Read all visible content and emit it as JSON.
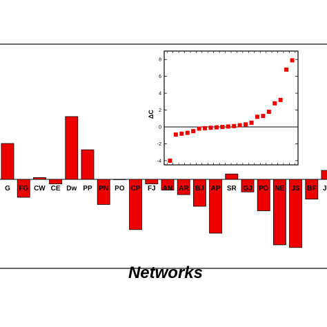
{
  "chart_data": [
    {
      "type": "bar",
      "xlabel": "Networks",
      "ylim": [
        -7,
        8
      ],
      "color": "#ee0000",
      "categories": [
        "G",
        "FG",
        "CW",
        "CE",
        "Dw",
        "PP",
        "PN",
        "PO",
        "CP",
        "FJ",
        "AN",
        "AR",
        "BJ",
        "AP",
        "SR",
        "GJ",
        "PD",
        "NE",
        "JS",
        "BF",
        "JM"
      ],
      "values": [
        4.0,
        -2.0,
        0.2,
        -0.5,
        7.0,
        3.3,
        -2.8,
        0.0,
        -5.6,
        -0.5,
        -1.2,
        -1.7,
        -3.0,
        -6.0,
        0.6,
        -1.4,
        -3.5,
        -7.3,
        -7.6,
        -2.2,
        1.0
      ]
    },
    {
      "type": "scatter",
      "ylabel": "ΔC",
      "ylim": [
        -4.5,
        9
      ],
      "yticks": [
        -4,
        -2,
        0,
        2,
        4,
        6,
        8
      ],
      "reference_line": 0,
      "color": "#ee0000",
      "values": [
        -4.0,
        -0.9,
        -0.8,
        -0.7,
        -0.5,
        -0.2,
        -0.15,
        -0.1,
        -0.05,
        0.0,
        0.05,
        0.1,
        0.2,
        0.3,
        0.5,
        1.2,
        1.3,
        1.8,
        2.8,
        3.2,
        6.8,
        7.9
      ]
    }
  ]
}
